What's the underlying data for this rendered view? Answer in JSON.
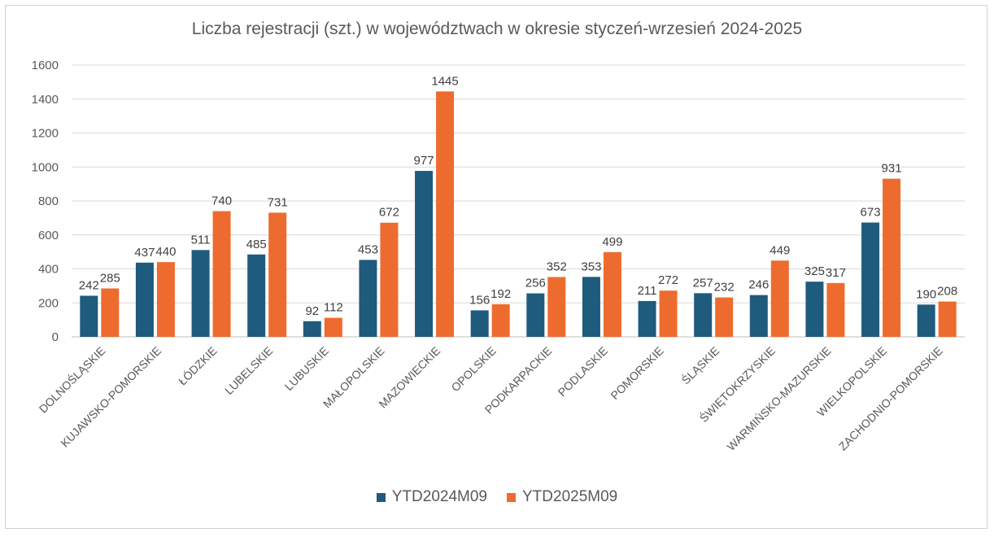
{
  "chart_data": {
    "type": "bar",
    "title": "Liczba rejestracji (szt.) w województwach w okresie styczeń-wrzesień 2024-2025",
    "xlabel": "",
    "ylabel": "",
    "ylim": [
      0,
      1600
    ],
    "yticks": [
      0,
      200,
      400,
      600,
      800,
      1000,
      1200,
      1400,
      1600
    ],
    "grid": true,
    "legend_position": "bottom",
    "categories": [
      "DOLNOŚLĄSKIE",
      "KUJAWSKO-POMORSKIE",
      "ŁÓDZKIE",
      "LUBELSKIE",
      "LUBUSKIE",
      "MAŁOPOLSKIE",
      "MAZOWIECKIE",
      "OPOLSKIE",
      "PODKARPACKIE",
      "PODLASKIE",
      "POMORSKIE",
      "ŚLĄSKIE",
      "ŚWIĘTOKRZYSKIE",
      "WARMIŃSKO-MAZURSKIE",
      "WIELKOPOLSKIE",
      "ZACHODNIO-POMORSKIE"
    ],
    "series": [
      {
        "name": "YTD2024M09",
        "color": "#1f5b7d",
        "values": [
          242,
          437,
          511,
          485,
          92,
          453,
          977,
          156,
          256,
          353,
          211,
          257,
          246,
          325,
          673,
          190
        ]
      },
      {
        "name": "YTD2025M09",
        "color": "#ed6b2f",
        "values": [
          285,
          440,
          740,
          731,
          112,
          672,
          1445,
          192,
          352,
          499,
          272,
          232,
          449,
          317,
          931,
          208
        ]
      }
    ]
  }
}
